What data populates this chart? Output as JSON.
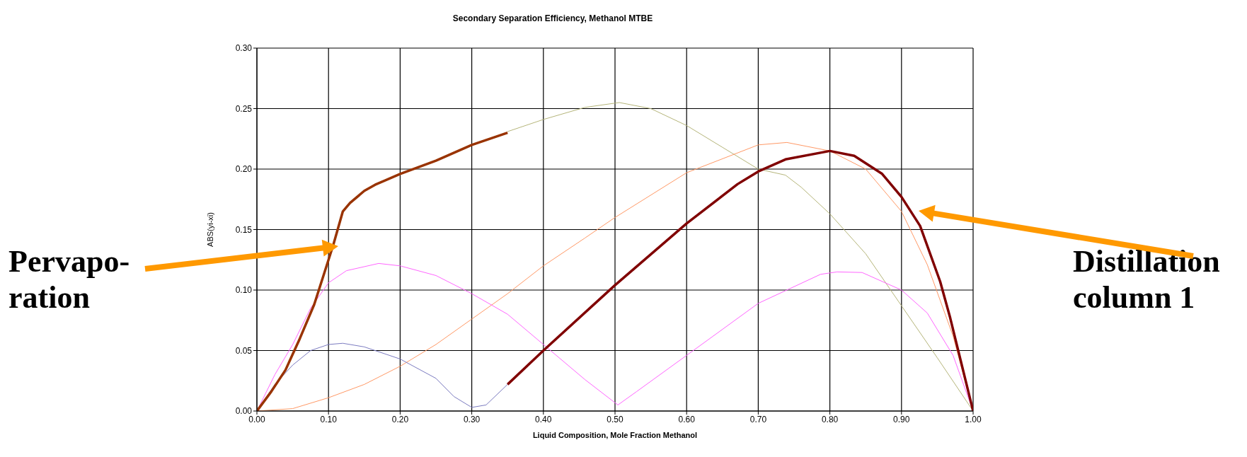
{
  "chart_data": {
    "type": "line",
    "title": "Secondary Separation Efficiency, Methanol MTBE",
    "xlabel": "Liquid Composition, Mole Fraction Methanol",
    "ylabel": "ABS(yi-xi)",
    "xlim": [
      0,
      1
    ],
    "xticks": [
      {
        "value": 0,
        "label": "0.00"
      },
      {
        "value": 0.1,
        "label": "0.10"
      },
      {
        "value": 0.2,
        "label": "0.20"
      },
      {
        "value": 0.3,
        "label": "0.30"
      },
      {
        "value": 0.4,
        "label": "0.40"
      },
      {
        "value": 0.5,
        "label": "0.50"
      },
      {
        "value": 0.6,
        "label": "0.60"
      },
      {
        "value": 0.7,
        "label": "0.70"
      },
      {
        "value": 0.8,
        "label": "0.80"
      },
      {
        "value": 0.9,
        "label": "0.90"
      },
      {
        "value": 1,
        "label": "1.00"
      }
    ],
    "ylim": [
      0,
      0.3
    ],
    "yticks": [
      {
        "value": 0,
        "label": "0.00"
      },
      {
        "value": 0.05,
        "label": "0.05"
      },
      {
        "value": 0.1,
        "label": "0.10"
      },
      {
        "value": 0.15,
        "label": "0.15"
      },
      {
        "value": 0.2,
        "label": "0.20"
      },
      {
        "value": 0.25,
        "label": "0.25"
      },
      {
        "value": 0.3,
        "label": "0.30"
      }
    ],
    "grid": true,
    "legend": false,
    "marker": "none",
    "line_style": "solid",
    "annotations": [
      "Pervapo-\nration",
      "Distillation\ncolumn 1"
    ],
    "series": [
      {
        "color": "#b5b57a",
        "x": [
          0.35,
          0.4,
          0.458,
          0.506,
          0.55,
          0.6,
          0.65,
          0.7,
          0.738,
          0.76,
          0.8,
          0.85,
          0.9,
          0.95,
          1.0
        ],
        "values": [
          0.231,
          0.241,
          0.251,
          0.255,
          0.25,
          0.236,
          0.218,
          0.2,
          0.195,
          0.185,
          0.163,
          0.13,
          0.087,
          0.044,
          0
        ]
      },
      {
        "color": "#ff9966",
        "x": [
          0,
          0.05,
          0.1,
          0.15,
          0.2,
          0.25,
          0.3,
          0.35,
          0.4,
          0.458,
          0.5,
          0.6,
          0.7,
          0.74,
          0.8,
          0.85,
          0.9,
          0.936,
          0.972,
          1.0
        ],
        "values": [
          0,
          0.002,
          0.011,
          0.022,
          0.037,
          0.055,
          0.076,
          0.097,
          0.12,
          0.143,
          0.16,
          0.197,
          0.22,
          0.222,
          0.215,
          0.2,
          0.165,
          0.121,
          0.062,
          0
        ]
      },
      {
        "color": "#ff66ff",
        "x": [
          0,
          0.025,
          0.05,
          0.075,
          0.1,
          0.125,
          0.17,
          0.2,
          0.25,
          0.3,
          0.35,
          0.4,
          0.458,
          0.504,
          0.53,
          0.6,
          0.7,
          0.787,
          0.81,
          0.845,
          0.9,
          0.936,
          0.972,
          1.0
        ],
        "values": [
          0,
          0.03,
          0.055,
          0.085,
          0.106,
          0.116,
          0.122,
          0.12,
          0.112,
          0.097,
          0.08,
          0.055,
          0.026,
          0.005,
          0.016,
          0.046,
          0.089,
          0.113,
          0.115,
          0.1145,
          0.1,
          0.081,
          0.046,
          0
        ]
      },
      {
        "color": "#7b7bc0",
        "x": [
          0,
          0.025,
          0.05,
          0.075,
          0.1,
          0.12,
          0.15,
          0.2,
          0.25,
          0.275,
          0.3,
          0.32,
          0.35
        ],
        "values": [
          0,
          0.022,
          0.038,
          0.05,
          0.055,
          0.056,
          0.053,
          0.043,
          0.027,
          0.012,
          0.003,
          0.005,
          0.022
        ]
      },
      {
        "color": "#993300",
        "x": [
          0,
          0.02,
          0.04,
          0.06,
          0.08,
          0.1,
          0.107,
          0.12,
          0.13,
          0.15,
          0.165,
          0.2,
          0.25,
          0.3,
          0.35
        ],
        "values": [
          0,
          0.016,
          0.034,
          0.06,
          0.088,
          0.125,
          0.138,
          0.165,
          0.172,
          0.182,
          0.187,
          0.196,
          0.207,
          0.22,
          0.23
        ]
      },
      {
        "color": "#800000",
        "x": [
          0.35,
          0.4,
          0.5,
          0.6,
          0.671,
          0.7,
          0.738,
          0.8,
          0.834,
          0.873,
          0.9,
          0.926,
          0.954,
          0.968,
          1.0
        ],
        "values": [
          0.022,
          0.05,
          0.104,
          0.155,
          0.1875,
          0.198,
          0.208,
          0.215,
          0.211,
          0.196,
          0.177,
          0.153,
          0.107,
          0.077,
          0
        ]
      }
    ]
  }
}
